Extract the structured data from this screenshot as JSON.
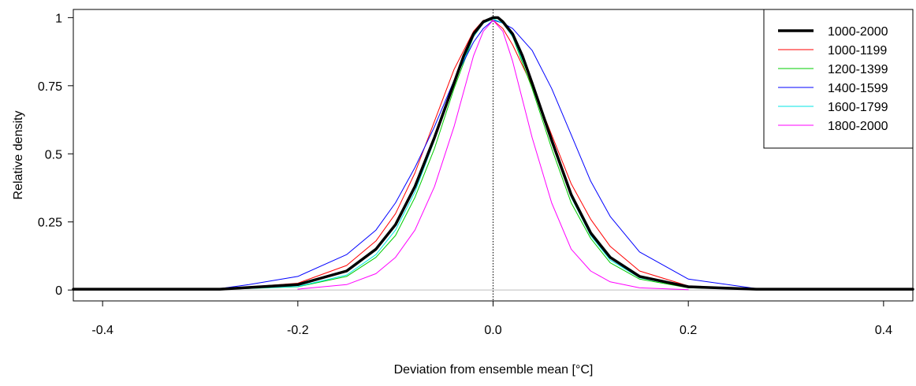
{
  "chart_data": {
    "type": "line",
    "title": "",
    "xlabel": "Deviation from ensemble mean [°C]",
    "ylabel": "Relative density",
    "xlim": [
      -0.43,
      0.43
    ],
    "ylim": [
      -0.04,
      1.03
    ],
    "xticks": [
      -0.4,
      -0.2,
      0.0,
      0.2,
      0.4
    ],
    "xtick_labels": [
      "-0.4",
      "-0.2",
      "0.0",
      "0.2",
      "0.4"
    ],
    "yticks": [
      0,
      0.25,
      0.5,
      0.75,
      1
    ],
    "ytick_labels": [
      "0",
      "0.25",
      "0.5",
      "0.75",
      "1"
    ],
    "grid": false,
    "reference_lines": [
      {
        "orientation": "horizontal",
        "value": 0,
        "color": "#bebebe",
        "style": "solid"
      },
      {
        "orientation": "vertical",
        "value": 0,
        "color": "#000000",
        "style": "dotted"
      }
    ],
    "legend_position": "top-right",
    "series": [
      {
        "name": "1000-2000",
        "color": "#000000",
        "width": 3.5,
        "x": [
          -0.43,
          -0.28,
          -0.2,
          -0.15,
          -0.12,
          -0.1,
          -0.08,
          -0.06,
          -0.04,
          -0.03,
          -0.02,
          -0.01,
          0.0,
          0.005,
          0.01,
          0.02,
          0.03,
          0.04,
          0.06,
          0.08,
          0.1,
          0.12,
          0.15,
          0.2,
          0.27,
          0.43
        ],
        "y": [
          0.003,
          0.003,
          0.02,
          0.07,
          0.15,
          0.24,
          0.38,
          0.56,
          0.76,
          0.86,
          0.94,
          0.985,
          1.0,
          1.0,
          0.985,
          0.94,
          0.86,
          0.76,
          0.55,
          0.35,
          0.21,
          0.12,
          0.05,
          0.012,
          0.003,
          0.003
        ]
      },
      {
        "name": "1000-1199",
        "color": "#ff0000",
        "width": 1,
        "x": [
          -0.28,
          -0.2,
          -0.15,
          -0.12,
          -0.1,
          -0.08,
          -0.06,
          -0.04,
          -0.02,
          -0.01,
          0.0,
          0.01,
          0.02,
          0.04,
          0.06,
          0.08,
          0.1,
          0.12,
          0.15,
          0.2,
          0.27
        ],
        "y": [
          0.003,
          0.025,
          0.09,
          0.18,
          0.28,
          0.43,
          0.62,
          0.81,
          0.95,
          0.99,
          0.99,
          0.96,
          0.9,
          0.75,
          0.57,
          0.39,
          0.26,
          0.16,
          0.07,
          0.015,
          0.003
        ]
      },
      {
        "name": "1200-1399",
        "color": "#00cc00",
        "width": 1,
        "x": [
          -0.28,
          -0.2,
          -0.15,
          -0.12,
          -0.1,
          -0.08,
          -0.06,
          -0.04,
          -0.02,
          -0.01,
          0.0,
          0.01,
          0.02,
          0.04,
          0.06,
          0.08,
          0.1,
          0.12,
          0.15,
          0.2,
          0.27
        ],
        "y": [
          0.002,
          0.012,
          0.05,
          0.12,
          0.2,
          0.34,
          0.52,
          0.74,
          0.93,
          0.98,
          0.995,
          0.98,
          0.93,
          0.74,
          0.52,
          0.32,
          0.19,
          0.1,
          0.04,
          0.008,
          0.002
        ]
      },
      {
        "name": "1400-1599",
        "color": "#0000ff",
        "width": 1,
        "x": [
          -0.28,
          -0.25,
          -0.2,
          -0.15,
          -0.12,
          -0.1,
          -0.08,
          -0.06,
          -0.04,
          -0.02,
          -0.01,
          0.0,
          0.01,
          0.02,
          0.04,
          0.06,
          0.08,
          0.1,
          0.12,
          0.15,
          0.2,
          0.27
        ],
        "y": [
          0.005,
          0.02,
          0.05,
          0.13,
          0.22,
          0.32,
          0.45,
          0.6,
          0.77,
          0.91,
          0.96,
          0.99,
          0.98,
          0.96,
          0.88,
          0.74,
          0.57,
          0.4,
          0.27,
          0.14,
          0.04,
          0.005
        ]
      },
      {
        "name": "1600-1799",
        "color": "#00e5e5",
        "width": 1,
        "x": [
          -0.28,
          -0.2,
          -0.15,
          -0.12,
          -0.1,
          -0.08,
          -0.06,
          -0.04,
          -0.02,
          -0.01,
          0.0,
          0.01,
          0.02,
          0.04,
          0.06,
          0.08,
          0.1,
          0.12,
          0.15,
          0.2,
          0.27
        ],
        "y": [
          0.002,
          0.013,
          0.055,
          0.13,
          0.22,
          0.36,
          0.55,
          0.76,
          0.93,
          0.98,
          0.995,
          0.98,
          0.93,
          0.76,
          0.54,
          0.34,
          0.2,
          0.11,
          0.045,
          0.01,
          0.002
        ]
      },
      {
        "name": "1800-2000",
        "color": "#ff00ff",
        "width": 1,
        "x": [
          -0.2,
          -0.15,
          -0.12,
          -0.1,
          -0.08,
          -0.06,
          -0.04,
          -0.02,
          -0.01,
          0.0,
          0.01,
          0.02,
          0.04,
          0.06,
          0.08,
          0.1,
          0.12,
          0.15,
          0.2
        ],
        "y": [
          0.003,
          0.02,
          0.06,
          0.12,
          0.22,
          0.38,
          0.6,
          0.86,
          0.95,
          0.99,
          0.95,
          0.84,
          0.56,
          0.32,
          0.15,
          0.07,
          0.03,
          0.008,
          0.001
        ]
      }
    ]
  }
}
